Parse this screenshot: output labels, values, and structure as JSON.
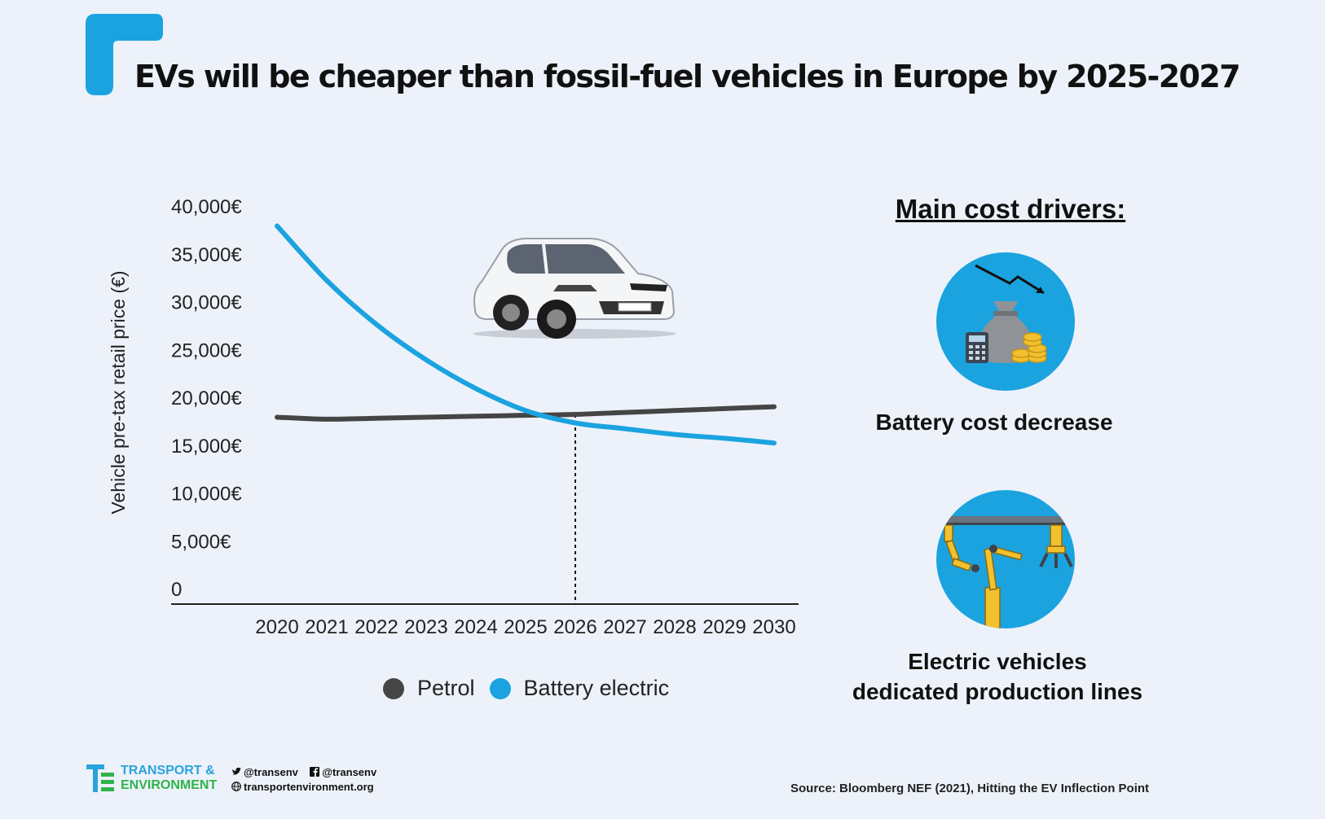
{
  "title": "EVs will be cheaper than fossil-fuel vehicles in Europe by 2025-2027",
  "colors": {
    "accent": "#1ba3e0",
    "petrol": "#454545",
    "background": "#edf2fa"
  },
  "chart_data": {
    "type": "line",
    "ylabel": "Vehicle pre-tax retail price (€)",
    "xlabel": "",
    "x": [
      2020,
      2021,
      2022,
      2023,
      2024,
      2025,
      2026,
      2027,
      2028,
      2029,
      2030
    ],
    "y_ticks": [
      "0",
      "5,000€",
      "10,000€",
      "15,000€",
      "20,000€",
      "25,000€",
      "30,000€",
      "35,000€",
      "40,000€"
    ],
    "ylim": [
      0,
      40000
    ],
    "series": [
      {
        "name": "Petrol",
        "color": "#454545",
        "values": [
          18000,
          17800,
          17900,
          18000,
          18100,
          18200,
          18300,
          18500,
          18700,
          18900,
          19100
        ]
      },
      {
        "name": "Battery electric",
        "color": "#1ba3e0",
        "values": [
          38000,
          32300,
          27700,
          24000,
          21000,
          18700,
          17400,
          16800,
          16200,
          15800,
          15300
        ]
      }
    ],
    "annotation": {
      "type": "vertical-dashed-line",
      "x": 2026
    },
    "legend": "bottom",
    "grid": false
  },
  "drivers": {
    "title": "Main cost drivers:",
    "items": [
      {
        "label": "Battery cost decrease",
        "icon": "money-bag-icon"
      },
      {
        "label_line1": "Electric vehicles",
        "label_line2": "dedicated production lines",
        "icon": "robotic-arm-icon"
      }
    ]
  },
  "footer": {
    "logo_line1": "TRANSPORT &",
    "logo_line2": "ENVIRONMENT",
    "twitter": "@transenv",
    "facebook": "@transenv",
    "website": "transportenvironment.org",
    "source": "Source: Bloomberg NEF (2021), Hitting the EV Inflection Point"
  }
}
